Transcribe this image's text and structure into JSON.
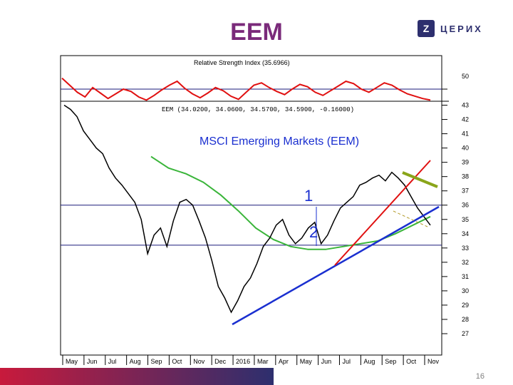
{
  "slide": {
    "title": "EEM",
    "page_number": "16"
  },
  "logo": {
    "text": "ЦЕРИХ",
    "mark": "Z",
    "icon": "brand-logo-icon"
  },
  "colors": {
    "title": "#7a2a7a",
    "logo": "#2d2f6e",
    "price": "#000000",
    "rsi": "#e01010",
    "moving_average": "#3ab53a",
    "trendline_primary": "#1a2fd0",
    "trendline_secondary": "#e01010",
    "resistance": "#8aa51a",
    "levels": "#1a1a7a"
  },
  "chart_data": {
    "type": "line",
    "title": "MSCI Emerging Markets (EEM)",
    "quote_line": "EEM (34.0200, 34.0600, 34.5700, 34.5900, -0.16000)",
    "x": [
      "May",
      "Jun",
      "Jul",
      "Aug",
      "Sep",
      "Oct",
      "Nov",
      "Dec",
      "2016",
      "Mar",
      "Apr",
      "May",
      "Jun",
      "Jul",
      "Aug",
      "Sep",
      "Oct",
      "Nov"
    ],
    "ylim": [
      26.5,
      43.2
    ],
    "y_ticks": [
      27,
      28,
      29,
      30,
      31,
      32,
      33,
      34,
      35,
      36,
      37,
      38,
      39,
      40,
      41,
      42,
      43
    ],
    "rsi": {
      "label": "Relative Strength Index (35.6966)",
      "ylim": [
        30,
        70
      ],
      "y_ticks": [
        50
      ],
      "values": [
        64,
        55,
        46,
        40,
        52,
        45,
        38,
        44,
        50,
        47,
        40,
        36,
        42,
        49,
        55,
        60,
        51,
        44,
        39,
        45,
        52,
        48,
        41,
        37,
        46,
        55,
        58,
        52,
        47,
        43,
        50,
        56,
        53,
        46,
        42,
        48,
        54,
        60,
        57,
        50,
        46,
        52,
        58,
        55,
        49,
        44,
        41,
        38,
        36
      ]
    },
    "price": {
      "values": [
        43.0,
        42.7,
        42.2,
        41.2,
        40.6,
        40.0,
        39.6,
        38.6,
        37.9,
        37.4,
        36.8,
        36.2,
        35.0,
        32.6,
        33.9,
        34.4,
        33.1,
        34.9,
        36.2,
        36.4,
        36.0,
        34.9,
        33.7,
        32.1,
        30.3,
        29.5,
        28.5,
        29.3,
        30.3,
        30.9,
        31.9,
        33.1,
        33.7,
        34.6,
        35.0,
        33.9,
        33.3,
        33.7,
        34.4,
        34.8,
        33.3,
        33.9,
        34.9,
        35.8,
        36.2,
        36.6,
        37.4,
        37.6,
        37.9,
        38.1,
        37.7,
        38.3,
        37.9,
        37.4,
        36.6,
        35.8,
        35.2,
        34.6
      ]
    },
    "moving_average": {
      "values": [
        39.4,
        38.6,
        38.2,
        37.6,
        36.7,
        35.6,
        34.4,
        33.6,
        33.1,
        32.9,
        32.9,
        33.1,
        33.3,
        33.5,
        34.0,
        34.6,
        35.2
      ]
    },
    "levels": [
      36.0,
      33.2
    ],
    "annotations": [
      "1",
      "2"
    ]
  }
}
